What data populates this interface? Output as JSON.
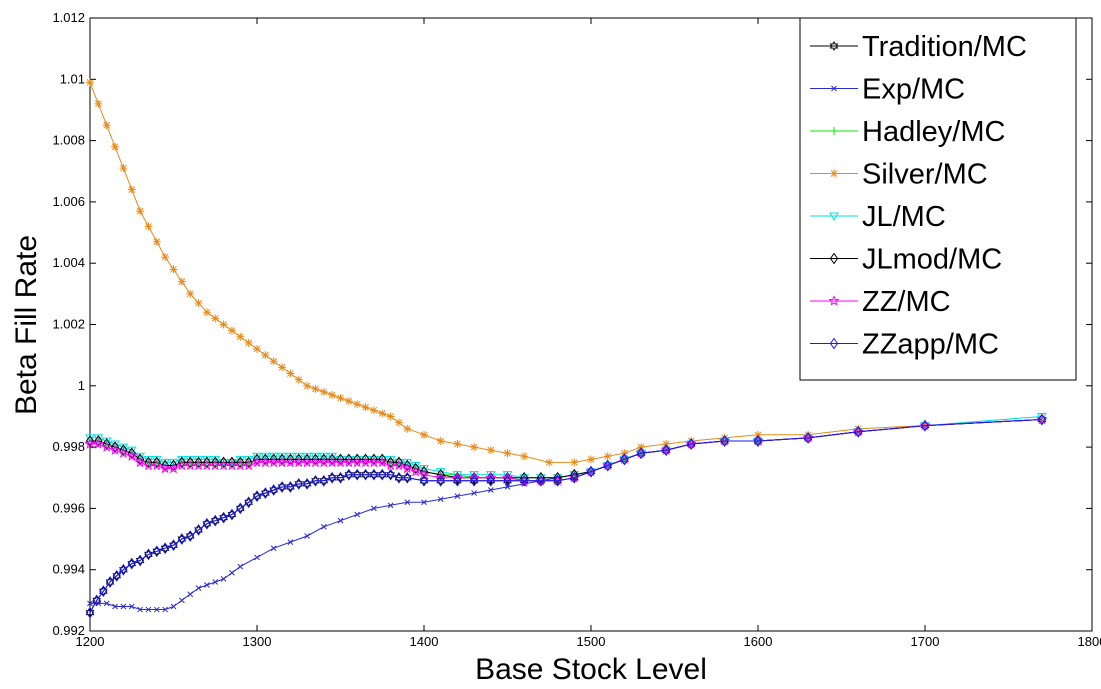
{
  "chart_data": {
    "type": "line",
    "title": "",
    "xlabel": "Base Stock Level",
    "ylabel": "Beta Fill Rate",
    "xlim": [
      1200,
      1800
    ],
    "ylim": [
      0.992,
      1.012
    ],
    "xticks": [
      1200,
      1300,
      1400,
      1500,
      1600,
      1700,
      1800
    ],
    "xtick_labels": [
      "1200",
      "1300",
      "1400",
      "1500",
      "1600",
      "1700",
      "1800"
    ],
    "yticks": [
      0.992,
      0.994,
      0.996,
      0.998,
      1.0,
      1.002,
      1.004,
      1.006,
      1.008,
      1.01,
      1.012
    ],
    "ytick_labels": [
      "0.992",
      "0.994",
      "0.996",
      "0.998",
      "1",
      "1.002",
      "1.004",
      "1.006",
      "1.008",
      "1.01",
      "1.012"
    ],
    "grid": false,
    "legend_position": "top-right",
    "series": [
      {
        "name": "Tradition/MC",
        "color": "#000000",
        "marker": "hexagram",
        "x": [
          1200,
          1204,
          1208,
          1212,
          1216,
          1220,
          1225,
          1230,
          1235,
          1240,
          1245,
          1250,
          1255,
          1260,
          1265,
          1270,
          1275,
          1280,
          1285,
          1290,
          1295,
          1300,
          1305,
          1310,
          1315,
          1320,
          1325,
          1330,
          1335,
          1340,
          1345,
          1350,
          1355,
          1360,
          1365,
          1370,
          1375,
          1380,
          1385,
          1390,
          1400,
          1410,
          1420,
          1430,
          1440,
          1450,
          1460,
          1470,
          1480,
          1490,
          1500,
          1510,
          1520,
          1530,
          1545,
          1560,
          1580,
          1600,
          1630,
          1660,
          1700,
          1770
        ],
        "y": [
          0.9926,
          0.993,
          0.9933,
          0.9936,
          0.9938,
          0.994,
          0.9942,
          0.9943,
          0.9945,
          0.9946,
          0.9947,
          0.9948,
          0.995,
          0.9951,
          0.9953,
          0.9955,
          0.9956,
          0.9957,
          0.9958,
          0.996,
          0.9962,
          0.9964,
          0.9965,
          0.9966,
          0.9967,
          0.9967,
          0.9968,
          0.9968,
          0.9969,
          0.9969,
          0.997,
          0.997,
          0.9971,
          0.9971,
          0.9971,
          0.9971,
          0.9971,
          0.9971,
          0.997,
          0.997,
          0.9969,
          0.9969,
          0.9969,
          0.9969,
          0.9969,
          0.9969,
          0.9969,
          0.9969,
          0.9969,
          0.997,
          0.9972,
          0.9974,
          0.9976,
          0.9978,
          0.9979,
          0.9981,
          0.9982,
          0.9982,
          0.9983,
          0.9985,
          0.9987,
          0.9989
        ]
      },
      {
        "name": "Exp/MC",
        "color": "#2a2ad8",
        "marker": "x",
        "x": [
          1200,
          1205,
          1210,
          1215,
          1220,
          1225,
          1230,
          1235,
          1240,
          1245,
          1250,
          1255,
          1260,
          1265,
          1270,
          1275,
          1280,
          1285,
          1290,
          1300,
          1310,
          1320,
          1330,
          1340,
          1350,
          1360,
          1370,
          1380,
          1390,
          1400,
          1410,
          1420,
          1430,
          1440,
          1450,
          1460,
          1470,
          1480,
          1490,
          1500,
          1510,
          1520,
          1530,
          1545,
          1560,
          1580,
          1600,
          1630,
          1660,
          1700,
          1770
        ],
        "y": [
          0.9929,
          0.9929,
          0.9929,
          0.9928,
          0.9928,
          0.9928,
          0.9927,
          0.9927,
          0.9927,
          0.9927,
          0.9928,
          0.993,
          0.9932,
          0.9934,
          0.9935,
          0.9936,
          0.9937,
          0.9939,
          0.9941,
          0.9944,
          0.9947,
          0.9949,
          0.9951,
          0.9954,
          0.9956,
          0.9958,
          0.996,
          0.9961,
          0.9962,
          0.9962,
          0.9963,
          0.9964,
          0.9965,
          0.9966,
          0.9967,
          0.9968,
          0.9969,
          0.997,
          0.9971,
          0.9972,
          0.9974,
          0.9976,
          0.9978,
          0.9979,
          0.9981,
          0.9982,
          0.9982,
          0.9983,
          0.9985,
          0.9987,
          0.9989
        ]
      },
      {
        "name": "Hadley/MC",
        "color": "#00ee00",
        "marker": "plus",
        "x": [
          1200,
          1205,
          1210,
          1215,
          1220,
          1225,
          1230,
          1235,
          1240,
          1245,
          1250,
          1255,
          1260,
          1265,
          1270,
          1275,
          1280,
          1285,
          1290,
          1295,
          1300,
          1305,
          1310,
          1315,
          1320,
          1325,
          1330,
          1335,
          1340,
          1345,
          1350,
          1355,
          1360,
          1365,
          1370,
          1375,
          1380,
          1385,
          1390,
          1395,
          1400,
          1410,
          1420,
          1430,
          1440,
          1450,
          1460,
          1470,
          1480,
          1490,
          1500,
          1510,
          1520,
          1530,
          1545,
          1560,
          1580,
          1600,
          1630,
          1660,
          1700,
          1770
        ],
        "y": [
          0.9982,
          0.9982,
          0.9981,
          0.998,
          0.9979,
          0.9978,
          0.9976,
          0.9975,
          0.9975,
          0.9974,
          0.9974,
          0.9975,
          0.9975,
          0.9975,
          0.9975,
          0.9975,
          0.9975,
          0.9975,
          0.9975,
          0.9975,
          0.9976,
          0.9976,
          0.9976,
          0.9976,
          0.9976,
          0.9976,
          0.9976,
          0.9976,
          0.9976,
          0.9976,
          0.9976,
          0.9976,
          0.9976,
          0.9976,
          0.9976,
          0.9976,
          0.9975,
          0.9975,
          0.9974,
          0.9973,
          0.9972,
          0.9971,
          0.9971,
          0.997,
          0.997,
          0.997,
          0.997,
          0.997,
          0.997,
          0.9971,
          0.9972,
          0.9974,
          0.9976,
          0.9978,
          0.9979,
          0.9981,
          0.9982,
          0.9982,
          0.9983,
          0.9985,
          0.9987,
          0.9989
        ]
      },
      {
        "name": "Silver/MC",
        "color": "#e88a1a",
        "marker": "asterisk",
        "x": [
          1200,
          1205,
          1210,
          1215,
          1220,
          1225,
          1230,
          1235,
          1240,
          1245,
          1250,
          1255,
          1260,
          1265,
          1270,
          1275,
          1280,
          1285,
          1290,
          1295,
          1300,
          1305,
          1310,
          1315,
          1320,
          1325,
          1330,
          1335,
          1340,
          1345,
          1350,
          1355,
          1360,
          1365,
          1370,
          1375,
          1380,
          1385,
          1390,
          1400,
          1410,
          1420,
          1430,
          1440,
          1450,
          1460,
          1475,
          1490,
          1500,
          1510,
          1520,
          1530,
          1545,
          1560,
          1580,
          1600,
          1630,
          1660,
          1700,
          1770
        ],
        "y": [
          1.0099,
          1.0092,
          1.0085,
          1.0078,
          1.0071,
          1.0064,
          1.0057,
          1.0052,
          1.0047,
          1.0042,
          1.0038,
          1.0034,
          1.003,
          1.0027,
          1.0024,
          1.0022,
          1.002,
          1.0018,
          1.0016,
          1.0014,
          1.0012,
          1.001,
          1.0008,
          1.0006,
          1.0004,
          1.0002,
          1.0,
          0.9999,
          0.9998,
          0.9997,
          0.9996,
          0.9995,
          0.9994,
          0.9993,
          0.9992,
          0.9991,
          0.999,
          0.9988,
          0.9986,
          0.9984,
          0.9982,
          0.9981,
          0.998,
          0.9979,
          0.9978,
          0.9977,
          0.9975,
          0.9975,
          0.9976,
          0.9977,
          0.9978,
          0.998,
          0.9981,
          0.9982,
          0.9983,
          0.9984,
          0.9984,
          0.9986,
          0.9987,
          0.9989
        ]
      },
      {
        "name": "JL/MC",
        "color": "#00e0e0",
        "marker": "triangle-down",
        "x": [
          1200,
          1205,
          1210,
          1215,
          1220,
          1225,
          1230,
          1235,
          1240,
          1245,
          1250,
          1255,
          1260,
          1265,
          1270,
          1275,
          1280,
          1285,
          1290,
          1295,
          1300,
          1305,
          1310,
          1315,
          1320,
          1325,
          1330,
          1335,
          1340,
          1345,
          1350,
          1355,
          1360,
          1365,
          1370,
          1375,
          1380,
          1385,
          1390,
          1395,
          1400,
          1410,
          1420,
          1430,
          1440,
          1450,
          1460,
          1470,
          1480,
          1490,
          1500,
          1510,
          1520,
          1530,
          1545,
          1560,
          1580,
          1600,
          1630,
          1660,
          1700,
          1770
        ],
        "y": [
          0.9983,
          0.9983,
          0.9982,
          0.9981,
          0.998,
          0.9979,
          0.9977,
          0.9976,
          0.9976,
          0.9975,
          0.9975,
          0.9976,
          0.9976,
          0.9976,
          0.9976,
          0.9976,
          0.9975,
          0.9975,
          0.9976,
          0.9976,
          0.9977,
          0.9977,
          0.9977,
          0.9977,
          0.9977,
          0.9977,
          0.9977,
          0.9977,
          0.9977,
          0.9977,
          0.9976,
          0.9976,
          0.9976,
          0.9976,
          0.9976,
          0.9976,
          0.9976,
          0.9975,
          0.9975,
          0.9974,
          0.9973,
          0.9972,
          0.9971,
          0.9971,
          0.9971,
          0.9971,
          0.997,
          0.997,
          0.997,
          0.9971,
          0.9972,
          0.9974,
          0.9976,
          0.9978,
          0.9979,
          0.9981,
          0.9982,
          0.9982,
          0.9983,
          0.9985,
          0.9987,
          0.999
        ]
      },
      {
        "name": "JLmod/MC",
        "color": "#000000",
        "marker": "diamond",
        "x": [
          1200,
          1205,
          1210,
          1215,
          1220,
          1225,
          1230,
          1235,
          1240,
          1245,
          1250,
          1255,
          1260,
          1265,
          1270,
          1275,
          1280,
          1285,
          1290,
          1295,
          1300,
          1305,
          1310,
          1315,
          1320,
          1325,
          1330,
          1335,
          1340,
          1345,
          1350,
          1355,
          1360,
          1365,
          1370,
          1375,
          1380,
          1385,
          1390,
          1395,
          1400,
          1410,
          1420,
          1430,
          1440,
          1450,
          1460,
          1470,
          1480,
          1490,
          1500,
          1510,
          1520,
          1530,
          1545,
          1560,
          1580,
          1600,
          1630,
          1660,
          1700,
          1770
        ],
        "y": [
          0.9982,
          0.9982,
          0.9981,
          0.998,
          0.9979,
          0.9978,
          0.9976,
          0.9975,
          0.9975,
          0.9974,
          0.9974,
          0.9975,
          0.9975,
          0.9975,
          0.9975,
          0.9975,
          0.9975,
          0.9975,
          0.9975,
          0.9975,
          0.9976,
          0.9976,
          0.9976,
          0.9976,
          0.9976,
          0.9976,
          0.9976,
          0.9976,
          0.9976,
          0.9976,
          0.9976,
          0.9976,
          0.9976,
          0.9976,
          0.9976,
          0.9976,
          0.9975,
          0.9975,
          0.9974,
          0.9973,
          0.9972,
          0.9971,
          0.997,
          0.997,
          0.997,
          0.997,
          0.997,
          0.997,
          0.997,
          0.9971,
          0.9972,
          0.9974,
          0.9976,
          0.9978,
          0.9979,
          0.9981,
          0.9982,
          0.9982,
          0.9983,
          0.9985,
          0.9987,
          0.9989
        ]
      },
      {
        "name": "ZZ/MC",
        "color": "#ff00ff",
        "marker": "pentagram",
        "x": [
          1200,
          1205,
          1210,
          1215,
          1220,
          1225,
          1230,
          1235,
          1240,
          1245,
          1250,
          1255,
          1260,
          1265,
          1270,
          1275,
          1280,
          1285,
          1290,
          1295,
          1300,
          1305,
          1310,
          1315,
          1320,
          1325,
          1330,
          1335,
          1340,
          1345,
          1350,
          1355,
          1360,
          1365,
          1370,
          1375,
          1380,
          1385,
          1390,
          1395,
          1400,
          1410,
          1420,
          1430,
          1440,
          1450,
          1460,
          1470,
          1480,
          1490,
          1500,
          1510,
          1520,
          1530,
          1545,
          1560,
          1580,
          1600,
          1630,
          1660,
          1700,
          1770
        ],
        "y": [
          0.9981,
          0.9981,
          0.998,
          0.9979,
          0.9978,
          0.9977,
          0.9975,
          0.9974,
          0.9974,
          0.9973,
          0.9973,
          0.9974,
          0.9974,
          0.9974,
          0.9974,
          0.9974,
          0.9974,
          0.9974,
          0.9974,
          0.9974,
          0.9975,
          0.9975,
          0.9975,
          0.9975,
          0.9975,
          0.9975,
          0.9975,
          0.9975,
          0.9975,
          0.9975,
          0.9975,
          0.9975,
          0.9975,
          0.9975,
          0.9975,
          0.9975,
          0.9974,
          0.9974,
          0.9973,
          0.9972,
          0.9971,
          0.997,
          0.997,
          0.997,
          0.997,
          0.997,
          0.9969,
          0.9969,
          0.9969,
          0.997,
          0.9972,
          0.9974,
          0.9976,
          0.9978,
          0.9979,
          0.9981,
          0.9982,
          0.9982,
          0.9983,
          0.9985,
          0.9987,
          0.9989
        ]
      },
      {
        "name": "ZZapp/MC",
        "color": "#1a1aee",
        "marker": "diamond",
        "x": [
          1200,
          1204,
          1208,
          1212,
          1216,
          1220,
          1225,
          1230,
          1235,
          1240,
          1245,
          1250,
          1255,
          1260,
          1265,
          1270,
          1275,
          1280,
          1285,
          1290,
          1295,
          1300,
          1305,
          1310,
          1315,
          1320,
          1325,
          1330,
          1335,
          1340,
          1345,
          1350,
          1355,
          1360,
          1365,
          1370,
          1375,
          1380,
          1385,
          1390,
          1400,
          1410,
          1420,
          1430,
          1440,
          1450,
          1460,
          1470,
          1480,
          1490,
          1500,
          1510,
          1520,
          1530,
          1545,
          1560,
          1580,
          1600,
          1630,
          1660,
          1700,
          1770
        ],
        "y": [
          0.9926,
          0.993,
          0.9933,
          0.9936,
          0.9938,
          0.994,
          0.9942,
          0.9943,
          0.9945,
          0.9946,
          0.9947,
          0.9948,
          0.995,
          0.9951,
          0.9953,
          0.9955,
          0.9956,
          0.9957,
          0.9958,
          0.996,
          0.9962,
          0.9964,
          0.9965,
          0.9966,
          0.9967,
          0.9967,
          0.9968,
          0.9968,
          0.9969,
          0.9969,
          0.997,
          0.997,
          0.9971,
          0.9971,
          0.9971,
          0.9971,
          0.9971,
          0.9971,
          0.997,
          0.997,
          0.9969,
          0.9969,
          0.9969,
          0.9969,
          0.9969,
          0.9969,
          0.9969,
          0.9969,
          0.9969,
          0.997,
          0.9972,
          0.9974,
          0.9976,
          0.9978,
          0.9979,
          0.9981,
          0.9982,
          0.9982,
          0.9983,
          0.9985,
          0.9987,
          0.9989
        ]
      }
    ]
  }
}
